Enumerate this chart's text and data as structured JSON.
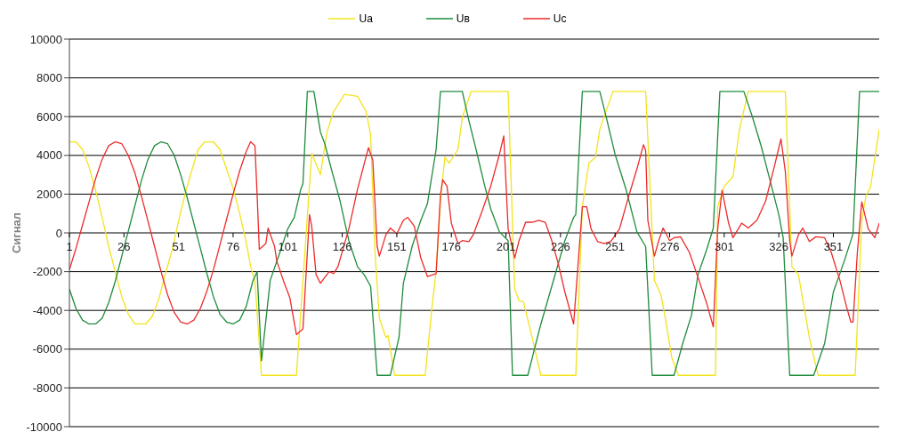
{
  "chart_data": {
    "type": "line",
    "ylabel": "Сигнал",
    "xlim": [
      1,
      372
    ],
    "xticks": [
      1,
      26,
      51,
      76,
      101,
      126,
      151,
      176,
      201,
      226,
      251,
      276,
      301,
      326,
      351
    ],
    "ylim": [
      -10000,
      10000
    ],
    "yticks": [
      -10000,
      -8000,
      -6000,
      -4000,
      -2000,
      0,
      2000,
      4000,
      6000,
      8000,
      10000
    ],
    "grid": "y",
    "legend": "top",
    "marker": "none",
    "line_style": "solid",
    "series": [
      {
        "name": "Ua",
        "color": "#f2e41c",
        "x": [
          1,
          4,
          7,
          10,
          13,
          16,
          19,
          22,
          25,
          28,
          31,
          36,
          39,
          42,
          45,
          48,
          51,
          54,
          57,
          60,
          63,
          67,
          70,
          73,
          76,
          79,
          82,
          84,
          86,
          89,
          105,
          112,
          116,
          119,
          122,
          127,
          133,
          137,
          139,
          141,
          143,
          146,
          147,
          150,
          164,
          167,
          169,
          171,
          173,
          175,
          179,
          181,
          185,
          202,
          205,
          207,
          209,
          213,
          217,
          233,
          236,
          239,
          242,
          244,
          250,
          265,
          269,
          272,
          274,
          277,
          280,
          297,
          298,
          301,
          305,
          308,
          312,
          329,
          332,
          335,
          340,
          344,
          361,
          364,
          366,
          368,
          372
        ],
        "values": [
          4700,
          4700,
          4300,
          3400,
          2200,
          800,
          -700,
          -2000,
          -3300,
          -4200,
          -4700,
          -4700,
          -4300,
          -3400,
          -2100,
          -900,
          600,
          2000,
          3200,
          4300,
          4700,
          4700,
          4300,
          3300,
          2300,
          1000,
          -500,
          -1700,
          -2500,
          -7350,
          -7350,
          4100,
          3000,
          5200,
          6250,
          7150,
          7050,
          6250,
          5050,
          -1000,
          -4400,
          -5400,
          -5300,
          -7350,
          -7350,
          -3950,
          -2000,
          1650,
          3900,
          3600,
          4300,
          5950,
          7300,
          7300,
          -2900,
          -3500,
          -3550,
          -5400,
          -7350,
          -7350,
          1350,
          3600,
          3900,
          5350,
          7300,
          7300,
          -2450,
          -3200,
          -4400,
          -6450,
          -7350,
          -7350,
          1350,
          2400,
          2900,
          5350,
          7300,
          7300,
          -1750,
          -2150,
          -5400,
          -7350,
          -7350,
          650,
          1950,
          2350,
          5350
        ]
      },
      {
        "name": "Uв",
        "color": "#1e8c3c",
        "x": [
          1,
          4,
          7,
          10,
          13,
          16,
          19,
          22,
          25,
          28,
          31,
          34,
          37,
          40,
          43,
          46,
          49,
          52,
          55,
          58,
          61,
          64,
          67,
          70,
          73,
          76,
          79,
          82,
          85,
          87,
          89,
          93,
          97,
          101,
          104,
          107,
          108,
          110,
          113,
          116,
          118,
          121,
          125,
          129,
          133,
          136,
          139,
          142,
          148,
          152,
          154,
          158,
          162,
          165,
          169,
          171,
          181,
          184,
          187,
          191,
          194,
          198,
          202,
          204,
          211,
          217,
          222,
          228,
          232,
          233,
          236,
          244,
          247,
          251,
          256,
          261,
          265,
          268,
          278,
          282,
          286,
          289,
          293,
          296,
          299,
          310,
          314,
          318,
          322,
          326,
          328,
          331,
          342,
          347,
          351,
          356,
          360,
          363,
          372
        ],
        "values": [
          -2900,
          -3900,
          -4500,
          -4700,
          -4700,
          -4400,
          -3600,
          -2500,
          -1200,
          100,
          1400,
          2700,
          3800,
          4500,
          4700,
          4600,
          4000,
          3000,
          1800,
          500,
          -800,
          -2100,
          -3300,
          -4200,
          -4600,
          -4700,
          -4500,
          -3800,
          -2500,
          -2000,
          -6600,
          -2450,
          -1150,
          200,
          800,
          2250,
          2550,
          7300,
          7300,
          5200,
          4600,
          3300,
          1650,
          -400,
          -1750,
          -2150,
          -2750,
          -7350,
          -7350,
          -5400,
          -2600,
          -700,
          650,
          1500,
          4300,
          7300,
          7300,
          5800,
          4450,
          2550,
          1250,
          50,
          -400,
          -7350,
          -7350,
          -4700,
          -2750,
          -400,
          800,
          950,
          7300,
          7300,
          5950,
          4050,
          2250,
          50,
          -700,
          -7350,
          -7350,
          -5700,
          -4250,
          -2150,
          -850,
          250,
          7300,
          7300,
          5950,
          4450,
          2700,
          950,
          -250,
          -7350,
          -7350,
          -5700,
          -3050,
          -1450,
          -50,
          7300,
          7300
        ]
      },
      {
        "name": "Uc",
        "color": "#ee2a2a",
        "x": [
          1,
          4,
          7,
          10,
          13,
          16,
          19,
          22,
          25,
          28,
          31,
          34,
          37,
          40,
          43,
          46,
          49,
          52,
          55,
          58,
          61,
          64,
          67,
          70,
          73,
          76,
          79,
          82,
          84,
          86,
          87,
          88,
          91,
          92,
          95,
          96,
          99,
          102,
          105,
          108,
          111,
          112,
          114,
          116,
          120,
          122,
          124,
          129,
          133,
          138,
          140,
          142,
          143,
          146,
          148,
          151,
          154,
          156,
          159,
          162,
          165,
          169,
          171,
          172,
          174,
          176,
          179,
          181,
          184,
          186,
          190,
          194,
          198,
          200,
          202,
          205,
          207,
          210,
          213,
          216,
          219,
          222,
          225,
          228,
          232,
          236,
          238,
          240,
          243,
          246,
          249,
          253,
          257,
          261,
          264,
          265,
          266,
          269,
          271,
          273,
          276,
          278,
          281,
          285,
          289,
          293,
          296,
          298,
          300,
          303,
          305,
          309,
          312,
          316,
          320,
          324,
          327,
          329,
          331,
          332,
          335,
          337,
          340,
          343,
          347,
          350,
          354,
          357,
          359,
          360,
          362,
          364,
          367,
          370,
          372
        ],
        "values": [
          -1900,
          -800,
          400,
          1600,
          2800,
          3800,
          4500,
          4700,
          4600,
          4000,
          3100,
          1900,
          600,
          -700,
          -2000,
          -3200,
          -4100,
          -4600,
          -4700,
          -4500,
          -3900,
          -3000,
          -1900,
          -600,
          700,
          2000,
          3200,
          4200,
          4700,
          4500,
          1950,
          -850,
          -550,
          250,
          -700,
          -1450,
          -2450,
          -3350,
          -5250,
          -4950,
          950,
          350,
          -2150,
          -2600,
          -2000,
          -2100,
          -1750,
          200,
          2250,
          4400,
          3750,
          -700,
          -1200,
          -100,
          250,
          -50,
          650,
          800,
          350,
          -1300,
          -2250,
          -2100,
          1950,
          2750,
          2400,
          500,
          -550,
          -400,
          -450,
          -100,
          1100,
          2400,
          4050,
          5000,
          200,
          -1300,
          -400,
          550,
          550,
          650,
          550,
          -400,
          -1600,
          -3050,
          -4700,
          1350,
          1350,
          200,
          -450,
          -550,
          -450,
          200,
          1800,
          3300,
          4550,
          4250,
          650,
          -1200,
          -400,
          250,
          -400,
          -250,
          -200,
          -1000,
          -2300,
          -3650,
          -4850,
          200,
          2200,
          500,
          -250,
          500,
          250,
          650,
          1650,
          3450,
          4850,
          3150,
          -400,
          -1200,
          -100,
          250,
          -450,
          -200,
          -250,
          -1000,
          -2450,
          -3800,
          -4600,
          -4600,
          -1000,
          1600,
          200,
          -250,
          500
        ]
      }
    ]
  }
}
